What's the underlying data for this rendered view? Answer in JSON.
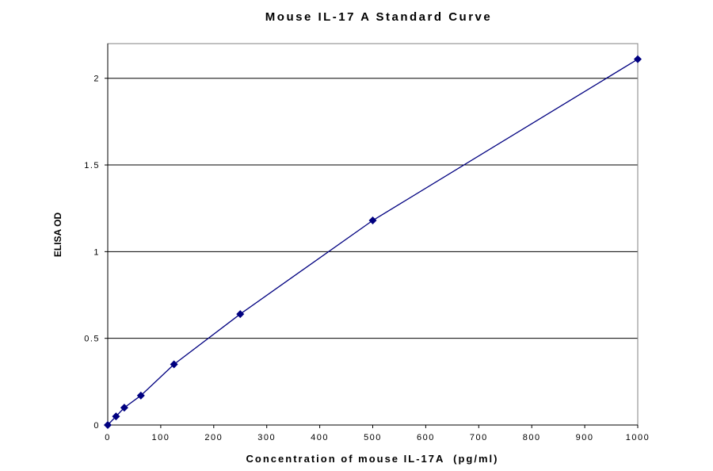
{
  "chart_data": {
    "type": "line",
    "title": "Mouse IL-17 A Standard Curve",
    "xlabel": "Concentration of mouse IL-17A  (pg/ml)",
    "ylabel": "ELISA OD",
    "xlim": [
      0,
      1000
    ],
    "ylim": [
      0,
      2.2
    ],
    "x_ticks": [
      "0",
      "100",
      "200",
      "300",
      "400",
      "500",
      "600",
      "700",
      "800",
      "900",
      "1000"
    ],
    "y_ticks": [
      "0",
      "0.5",
      "1",
      "1.5",
      "2"
    ],
    "grid": "horizontal",
    "series": [
      {
        "marker": "diamond",
        "color": "#000080",
        "points": [
          {
            "x": 0,
            "y": 0.0
          },
          {
            "x": 15.6,
            "y": 0.05
          },
          {
            "x": 31.25,
            "y": 0.1
          },
          {
            "x": 62.5,
            "y": 0.17
          },
          {
            "x": 125,
            "y": 0.35
          },
          {
            "x": 250,
            "y": 0.64
          },
          {
            "x": 500,
            "y": 1.18
          },
          {
            "x": 1000,
            "y": 2.11
          }
        ]
      }
    ]
  }
}
